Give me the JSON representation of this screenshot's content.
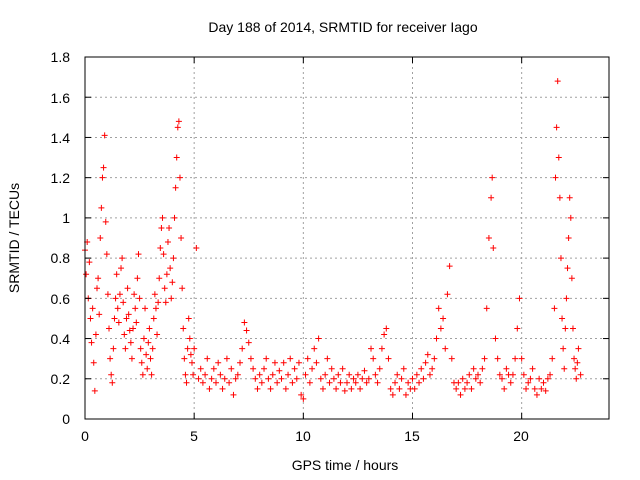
{
  "chart_data": {
    "type": "scatter",
    "title": "Day 188 of 2014, SRMTID for receiver Iago",
    "xlabel": "GPS time / hours",
    "ylabel": "SRMTID / TECUs",
    "xlim": [
      0,
      24
    ],
    "ylim": [
      0,
      1.8
    ],
    "xticks": [
      0,
      5,
      10,
      15,
      20
    ],
    "yticks": [
      0,
      0.2,
      0.4,
      0.6,
      0.8,
      1,
      1.2,
      1.4,
      1.6,
      1.8
    ],
    "x_tick_labels": [
      "0",
      "5",
      "10",
      "15",
      "20"
    ],
    "y_tick_labels": [
      "0",
      "0.2",
      "0.4",
      "0.6",
      "0.8",
      "1",
      "1.2",
      "1.4",
      "1.6",
      "1.8"
    ],
    "grid": true,
    "marker": "+",
    "color": "#ff0000",
    "series": [
      {
        "name": "SRMTID",
        "points": [
          [
            0.0,
            0.84
          ],
          [
            0.05,
            0.72
          ],
          [
            0.1,
            0.88
          ],
          [
            0.15,
            0.6
          ],
          [
            0.2,
            0.78
          ],
          [
            0.25,
            0.5
          ],
          [
            0.3,
            0.38
          ],
          [
            0.35,
            0.55
          ],
          [
            0.4,
            0.28
          ],
          [
            0.45,
            0.14
          ],
          [
            0.5,
            0.42
          ],
          [
            0.55,
            0.65
          ],
          [
            0.6,
            0.7
          ],
          [
            0.65,
            0.52
          ],
          [
            0.7,
            0.9
          ],
          [
            0.75,
            1.05
          ],
          [
            0.8,
            1.2
          ],
          [
            0.85,
            1.25
          ],
          [
            0.9,
            1.41
          ],
          [
            0.95,
            0.98
          ],
          [
            1.0,
            0.82
          ],
          [
            1.05,
            0.62
          ],
          [
            1.1,
            0.45
          ],
          [
            1.15,
            0.3
          ],
          [
            1.2,
            0.22
          ],
          [
            1.25,
            0.18
          ],
          [
            1.3,
            0.35
          ],
          [
            1.35,
            0.5
          ],
          [
            1.4,
            0.6
          ],
          [
            1.45,
            0.72
          ],
          [
            1.5,
            0.55
          ],
          [
            1.55,
            0.48
          ],
          [
            1.6,
            0.62
          ],
          [
            1.65,
            0.75
          ],
          [
            1.7,
            0.8
          ],
          [
            1.75,
            0.58
          ],
          [
            1.8,
            0.42
          ],
          [
            1.85,
            0.35
          ],
          [
            1.9,
            0.5
          ],
          [
            1.95,
            0.65
          ],
          [
            2.0,
            0.52
          ],
          [
            2.05,
            0.44
          ],
          [
            2.1,
            0.38
          ],
          [
            2.15,
            0.3
          ],
          [
            2.2,
            0.45
          ],
          [
            2.25,
            0.62
          ],
          [
            2.3,
            0.55
          ],
          [
            2.35,
            0.48
          ],
          [
            2.4,
            0.7
          ],
          [
            2.45,
            0.82
          ],
          [
            2.5,
            0.6
          ],
          [
            2.55,
            0.35
          ],
          [
            2.6,
            0.28
          ],
          [
            2.65,
            0.22
          ],
          [
            2.7,
            0.4
          ],
          [
            2.75,
            0.55
          ],
          [
            2.8,
            0.32
          ],
          [
            2.85,
            0.25
          ],
          [
            2.9,
            0.38
          ],
          [
            2.95,
            0.45
          ],
          [
            3.0,
            0.3
          ],
          [
            3.05,
            0.22
          ],
          [
            3.1,
            0.35
          ],
          [
            3.15,
            0.5
          ],
          [
            3.2,
            0.62
          ],
          [
            3.25,
            0.55
          ],
          [
            3.3,
            0.42
          ],
          [
            3.35,
            0.58
          ],
          [
            3.4,
            0.7
          ],
          [
            3.45,
            0.85
          ],
          [
            3.5,
            0.95
          ],
          [
            3.55,
            1.0
          ],
          [
            3.6,
            0.82
          ],
          [
            3.65,
            0.65
          ],
          [
            3.7,
            0.58
          ],
          [
            3.75,
            0.72
          ],
          [
            3.8,
            0.88
          ],
          [
            3.85,
            0.95
          ],
          [
            3.9,
            0.75
          ],
          [
            3.95,
            0.6
          ],
          [
            4.0,
            0.68
          ],
          [
            4.05,
            0.8
          ],
          [
            4.1,
            1.0
          ],
          [
            4.15,
            1.15
          ],
          [
            4.2,
            1.3
          ],
          [
            4.25,
            1.45
          ],
          [
            4.3,
            1.48
          ],
          [
            4.35,
            1.2
          ],
          [
            4.4,
            0.9
          ],
          [
            4.45,
            0.65
          ],
          [
            4.5,
            0.45
          ],
          [
            4.55,
            0.3
          ],
          [
            4.6,
            0.22
          ],
          [
            4.65,
            0.18
          ],
          [
            4.7,
            0.35
          ],
          [
            4.75,
            0.5
          ],
          [
            4.8,
            0.4
          ],
          [
            4.85,
            0.32
          ],
          [
            4.9,
            0.28
          ],
          [
            4.95,
            0.22
          ],
          [
            5.0,
            0.35
          ],
          [
            5.1,
            0.85
          ],
          [
            5.2,
            0.2
          ],
          [
            5.3,
            0.25
          ],
          [
            5.4,
            0.18
          ],
          [
            5.5,
            0.22
          ],
          [
            5.6,
            0.3
          ],
          [
            5.7,
            0.15
          ],
          [
            5.8,
            0.2
          ],
          [
            5.9,
            0.25
          ],
          [
            6.0,
            0.18
          ],
          [
            6.1,
            0.28
          ],
          [
            6.2,
            0.22
          ],
          [
            6.3,
            0.15
          ],
          [
            6.4,
            0.2
          ],
          [
            6.5,
            0.3
          ],
          [
            6.6,
            0.18
          ],
          [
            6.7,
            0.25
          ],
          [
            6.8,
            0.12
          ],
          [
            6.9,
            0.2
          ],
          [
            7.0,
            0.22
          ],
          [
            7.1,
            0.28
          ],
          [
            7.2,
            0.35
          ],
          [
            7.3,
            0.48
          ],
          [
            7.4,
            0.44
          ],
          [
            7.5,
            0.38
          ],
          [
            7.6,
            0.3
          ],
          [
            7.7,
            0.25
          ],
          [
            7.8,
            0.2
          ],
          [
            7.9,
            0.15
          ],
          [
            8.0,
            0.22
          ],
          [
            8.1,
            0.18
          ],
          [
            8.2,
            0.25
          ],
          [
            8.3,
            0.3
          ],
          [
            8.4,
            0.2
          ],
          [
            8.5,
            0.15
          ],
          [
            8.6,
            0.22
          ],
          [
            8.7,
            0.28
          ],
          [
            8.8,
            0.18
          ],
          [
            8.9,
            0.24
          ],
          [
            9.0,
            0.2
          ],
          [
            9.1,
            0.28
          ],
          [
            9.2,
            0.15
          ],
          [
            9.3,
            0.22
          ],
          [
            9.4,
            0.3
          ],
          [
            9.5,
            0.18
          ],
          [
            9.6,
            0.25
          ],
          [
            9.7,
            0.2
          ],
          [
            9.8,
            0.28
          ],
          [
            9.9,
            0.12
          ],
          [
            10.0,
            0.1
          ],
          [
            10.1,
            0.22
          ],
          [
            10.2,
            0.3
          ],
          [
            10.3,
            0.18
          ],
          [
            10.4,
            0.25
          ],
          [
            10.5,
            0.35
          ],
          [
            10.6,
            0.28
          ],
          [
            10.7,
            0.4
          ],
          [
            10.8,
            0.2
          ],
          [
            10.9,
            0.15
          ],
          [
            11.0,
            0.22
          ],
          [
            11.1,
            0.3
          ],
          [
            11.2,
            0.18
          ],
          [
            11.3,
            0.25
          ],
          [
            11.4,
            0.2
          ],
          [
            11.5,
            0.15
          ],
          [
            11.6,
            0.22
          ],
          [
            11.7,
            0.18
          ],
          [
            11.8,
            0.25
          ],
          [
            11.9,
            0.14
          ],
          [
            12.0,
            0.18
          ],
          [
            12.1,
            0.22
          ],
          [
            12.2,
            0.15
          ],
          [
            12.3,
            0.2
          ],
          [
            12.4,
            0.18
          ],
          [
            12.5,
            0.22
          ],
          [
            12.6,
            0.15
          ],
          [
            12.7,
            0.2
          ],
          [
            12.8,
            0.24
          ],
          [
            12.9,
            0.18
          ],
          [
            13.0,
            0.2
          ],
          [
            13.1,
            0.35
          ],
          [
            13.2,
            0.3
          ],
          [
            13.3,
            0.22
          ],
          [
            13.4,
            0.18
          ],
          [
            13.5,
            0.25
          ],
          [
            13.6,
            0.35
          ],
          [
            13.7,
            0.42
          ],
          [
            13.8,
            0.45
          ],
          [
            13.9,
            0.3
          ],
          [
            14.0,
            0.15
          ],
          [
            14.1,
            0.12
          ],
          [
            14.2,
            0.18
          ],
          [
            14.3,
            0.22
          ],
          [
            14.4,
            0.15
          ],
          [
            14.5,
            0.2
          ],
          [
            14.6,
            0.25
          ],
          [
            14.7,
            0.12
          ],
          [
            14.8,
            0.18
          ],
          [
            14.9,
            0.15
          ],
          [
            15.0,
            0.2
          ],
          [
            15.1,
            0.15
          ],
          [
            15.2,
            0.22
          ],
          [
            15.3,
            0.18
          ],
          [
            15.4,
            0.25
          ],
          [
            15.5,
            0.2
          ],
          [
            15.6,
            0.28
          ],
          [
            15.7,
            0.32
          ],
          [
            15.8,
            0.22
          ],
          [
            15.9,
            0.25
          ],
          [
            16.0,
            0.3
          ],
          [
            16.1,
            0.4
          ],
          [
            16.2,
            0.55
          ],
          [
            16.3,
            0.45
          ],
          [
            16.4,
            0.5
          ],
          [
            16.5,
            0.35
          ],
          [
            16.6,
            0.62
          ],
          [
            16.7,
            0.76
          ],
          [
            16.8,
            0.3
          ],
          [
            16.9,
            0.18
          ],
          [
            17.0,
            0.15
          ],
          [
            17.1,
            0.18
          ],
          [
            17.2,
            0.12
          ],
          [
            17.3,
            0.2
          ],
          [
            17.4,
            0.15
          ],
          [
            17.5,
            0.18
          ],
          [
            17.6,
            0.22
          ],
          [
            17.7,
            0.15
          ],
          [
            17.8,
            0.25
          ],
          [
            17.9,
            0.2
          ],
          [
            18.0,
            0.22
          ],
          [
            18.1,
            0.18
          ],
          [
            18.2,
            0.25
          ],
          [
            18.3,
            0.3
          ],
          [
            18.4,
            0.55
          ],
          [
            18.5,
            0.9
          ],
          [
            18.6,
            1.1
          ],
          [
            18.65,
            1.2
          ],
          [
            18.7,
            0.85
          ],
          [
            18.8,
            0.4
          ],
          [
            18.9,
            0.3
          ],
          [
            19.0,
            0.22
          ],
          [
            19.1,
            0.2
          ],
          [
            19.2,
            0.15
          ],
          [
            19.3,
            0.25
          ],
          [
            19.4,
            0.22
          ],
          [
            19.5,
            0.18
          ],
          [
            19.6,
            0.22
          ],
          [
            19.7,
            0.3
          ],
          [
            19.8,
            0.45
          ],
          [
            19.9,
            0.6
          ],
          [
            20.0,
            0.3
          ],
          [
            20.1,
            0.22
          ],
          [
            20.2,
            0.15
          ],
          [
            20.3,
            0.18
          ],
          [
            20.4,
            0.2
          ],
          [
            20.5,
            0.25
          ],
          [
            20.6,
            0.15
          ],
          [
            20.7,
            0.12
          ],
          [
            20.8,
            0.2
          ],
          [
            20.9,
            0.15
          ],
          [
            21.0,
            0.18
          ],
          [
            21.1,
            0.14
          ],
          [
            21.2,
            0.2
          ],
          [
            21.3,
            0.22
          ],
          [
            21.4,
            0.3
          ],
          [
            21.5,
            0.55
          ],
          [
            21.55,
            1.2
          ],
          [
            21.6,
            1.45
          ],
          [
            21.65,
            1.68
          ],
          [
            21.7,
            1.3
          ],
          [
            21.75,
            1.1
          ],
          [
            21.8,
            0.8
          ],
          [
            21.85,
            0.5
          ],
          [
            21.9,
            0.35
          ],
          [
            21.95,
            0.25
          ],
          [
            22.0,
            0.45
          ],
          [
            22.05,
            0.6
          ],
          [
            22.1,
            0.75
          ],
          [
            22.15,
            0.9
          ],
          [
            22.2,
            1.1
          ],
          [
            22.25,
            1.0
          ],
          [
            22.3,
            0.7
          ],
          [
            22.35,
            0.45
          ],
          [
            22.4,
            0.3
          ],
          [
            22.45,
            0.25
          ],
          [
            22.5,
            0.2
          ],
          [
            22.55,
            0.28
          ],
          [
            22.6,
            0.35
          ],
          [
            22.7,
            0.22
          ]
        ]
      }
    ]
  }
}
